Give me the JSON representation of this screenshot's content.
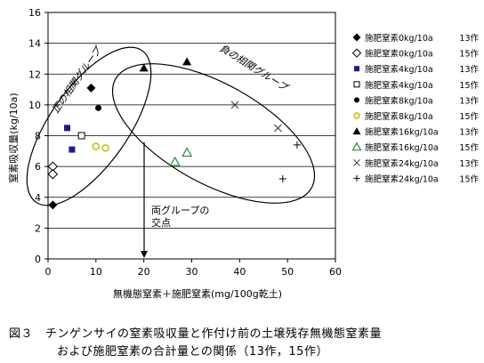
{
  "chart_data": {
    "type": "scatter",
    "xlabel": "無機態窒素＋施肥窒素(mg/100g乾土)",
    "ylabel": "窒素吸収量(kg/10a)",
    "xlim": [
      0,
      60
    ],
    "ylim": [
      0,
      16
    ],
    "xticks": [
      "0",
      "10",
      "20",
      "30",
      "40",
      "50",
      "60"
    ],
    "yticks": [
      "0",
      "2",
      "4",
      "6",
      "8",
      "10",
      "12",
      "14",
      "16"
    ],
    "grid": "horizontal",
    "legend_position": "right",
    "series": [
      {
        "name": "施肥窒素0kg/10a",
        "year": "13作",
        "marker": "diamond-filled",
        "points": [
          [
            1,
            3.5
          ],
          [
            9,
            11.1
          ]
        ]
      },
      {
        "name": "施肥窒素0kg/10a",
        "year": "15作",
        "marker": "diamond-open",
        "points": [
          [
            1,
            6
          ],
          [
            1,
            5.5
          ]
        ]
      },
      {
        "name": "施肥窒素4kg/10a",
        "year": "13作",
        "marker": "square-filled",
        "points": [
          [
            4,
            8.5
          ],
          [
            5,
            7.1
          ]
        ]
      },
      {
        "name": "施肥窒素4kg/10a",
        "year": "15作",
        "marker": "square-open",
        "points": [
          [
            7,
            8
          ]
        ]
      },
      {
        "name": "施肥窒素8kg/10a",
        "year": "13作",
        "marker": "circle-filled",
        "points": [
          [
            10.5,
            9.8
          ]
        ]
      },
      {
        "name": "施肥窒素8kg/10a",
        "year": "15作",
        "marker": "circle-open-yellow",
        "points": [
          [
            10,
            7.3
          ],
          [
            12,
            7.2
          ]
        ]
      },
      {
        "name": "施肥窒素16kg/10a",
        "year": "13作",
        "marker": "triangle-filled",
        "points": [
          [
            20,
            12.4
          ],
          [
            29,
            12.8
          ]
        ]
      },
      {
        "name": "施肥窒素16kg/10a",
        "year": "15作",
        "marker": "triangle-open-green",
        "points": [
          [
            26.5,
            6.3
          ],
          [
            29,
            6.9
          ]
        ]
      },
      {
        "name": "施肥窒素24kg/10a",
        "year": "13作",
        "marker": "x",
        "points": [
          [
            39,
            10
          ],
          [
            48,
            8.5
          ]
        ]
      },
      {
        "name": "施肥窒素24kg/10a",
        "year": "15作",
        "marker": "plus",
        "points": [
          [
            52,
            7.4
          ],
          [
            49,
            5.2
          ]
        ]
      }
    ],
    "annotations": {
      "positive_group": "正の相関グループ",
      "negative_group": "負の相関グループ",
      "intersection": [
        "両グループの",
        "交点"
      ]
    }
  },
  "caption": {
    "figure_label": "図３",
    "line1": "チンゲンサイの窒素吸収量と作付け前の土壌残存無機態窒素量",
    "line2": "および施肥窒素の合計量との関係（13作，15作）"
  }
}
